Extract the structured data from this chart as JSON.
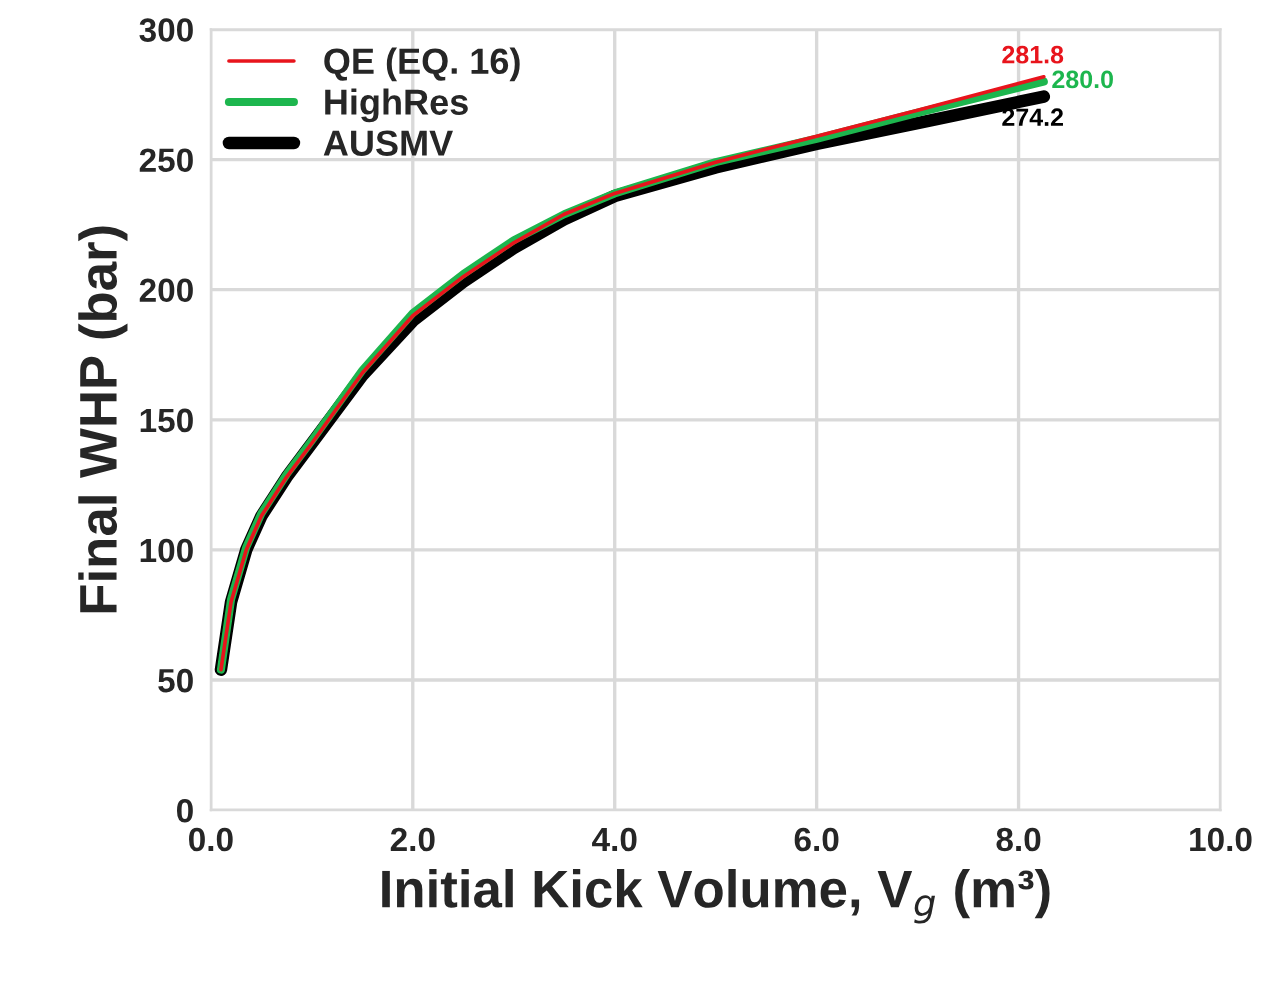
{
  "chart_data": {
    "type": "line",
    "xlabel": "Initial Kick Volume, V$_{g}$ (m³)",
    "ylabel": "Final WHP (bar)",
    "x": [
      0.1,
      0.2,
      0.35,
      0.5,
      0.75,
      1.0,
      1.5,
      2.0,
      2.5,
      3.0,
      3.5,
      4.0,
      5.0,
      6.0,
      7.0,
      8.25
    ],
    "series": [
      {
        "name": "QE (EQ. 16)",
        "color": "#e8141c",
        "values": [
          54,
          80,
          100,
          113,
          128,
          141,
          168,
          190,
          205,
          218,
          229,
          237,
          249,
          259,
          269,
          281.8
        ],
        "value_labels": [
          null,
          null,
          null,
          null,
          null,
          null,
          null,
          null,
          null,
          null,
          null,
          null,
          null,
          null,
          null,
          "281.8"
        ]
      },
      {
        "name": "HighRes",
        "color": "#1db64e",
        "values": [
          54,
          81,
          101,
          114,
          129,
          142,
          169,
          191,
          206,
          219,
          229,
          237,
          249,
          258,
          268,
          280.0
        ],
        "value_labels": [
          null,
          null,
          null,
          null,
          null,
          null,
          null,
          null,
          null,
          null,
          null,
          null,
          null,
          null,
          null,
          "280.0"
        ]
      },
      {
        "name": "AUSMV",
        "color": "#000000",
        "values": [
          54,
          80,
          100,
          113,
          128,
          141,
          167,
          188,
          203,
          216,
          227,
          236,
          247,
          256,
          264,
          274.2
        ],
        "value_labels": [
          null,
          null,
          null,
          null,
          null,
          null,
          null,
          null,
          null,
          null,
          null,
          null,
          null,
          null,
          null,
          "274.2"
        ]
      }
    ],
    "xlim": [
      0,
      10
    ],
    "xticks": [
      {
        "value": 0,
        "label": "0.0"
      },
      {
        "value": 2,
        "label": "2.0"
      },
      {
        "value": 4,
        "label": "4.0"
      },
      {
        "value": 6,
        "label": "6.0"
      },
      {
        "value": 8,
        "label": "8.0"
      },
      {
        "value": 10,
        "label": "10.0"
      }
    ],
    "ylim": [
      0,
      300
    ],
    "yticks": [
      0,
      50,
      100,
      150,
      200,
      250,
      300
    ],
    "grid": true,
    "legend": "top left",
    "marker": "none",
    "line_style": "solid"
  }
}
